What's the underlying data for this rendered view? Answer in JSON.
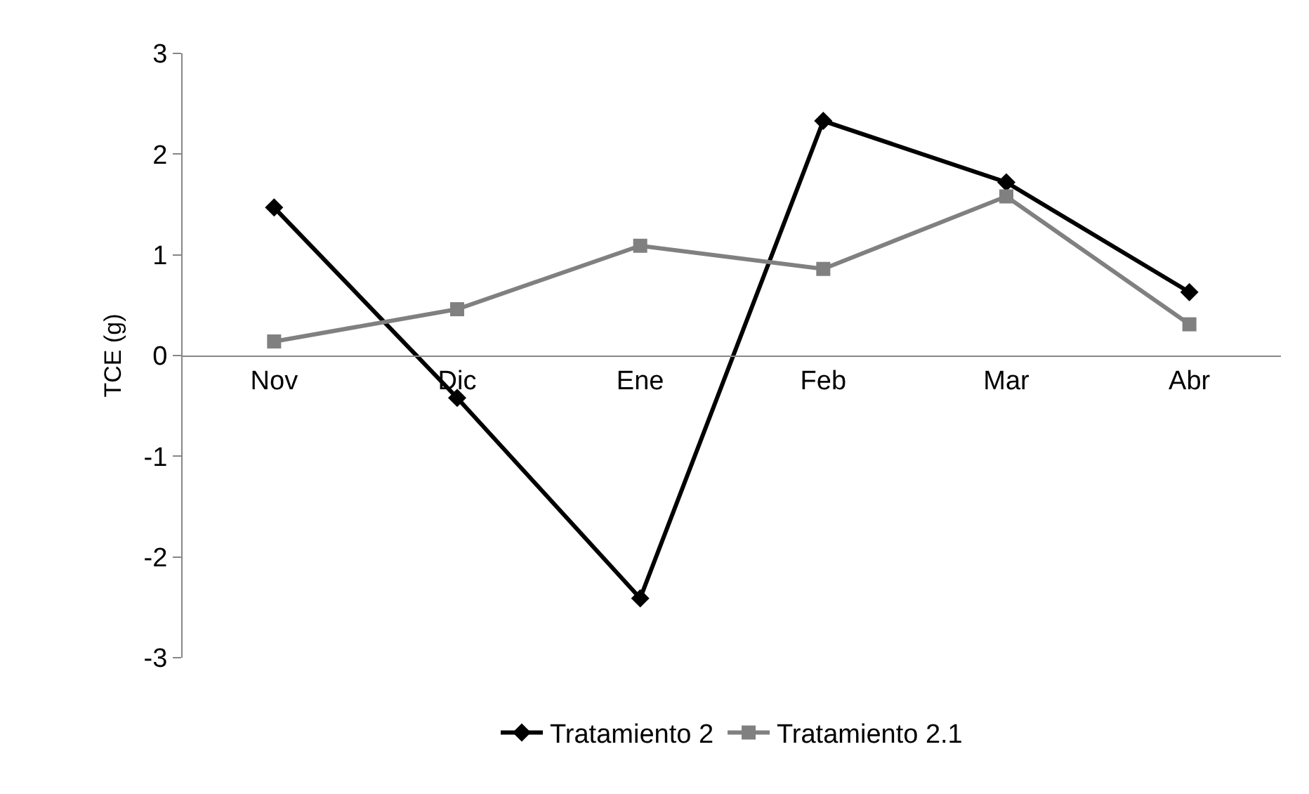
{
  "chart_data": {
    "type": "line",
    "ylabel": "TCE (g)",
    "categories": [
      "Nov",
      "Dic",
      "Ene",
      "Feb",
      "Mar",
      "Abr"
    ],
    "series": [
      {
        "name": "Tratamiento 2",
        "color": "#000000",
        "marker": "diamond",
        "values": [
          1.47,
          -0.42,
          -2.41,
          2.33,
          1.72,
          0.63
        ]
      },
      {
        "name": "Tratamiento 2.1",
        "color": "#808080",
        "marker": "square",
        "values": [
          0.14,
          0.46,
          1.09,
          0.86,
          1.58,
          0.31
        ]
      }
    ],
    "ylim": [
      -3,
      3
    ],
    "yticks": [
      -3,
      -2,
      -1,
      0,
      1,
      2,
      3
    ],
    "grid": false,
    "legend": "bottom",
    "line_style": "solid"
  }
}
